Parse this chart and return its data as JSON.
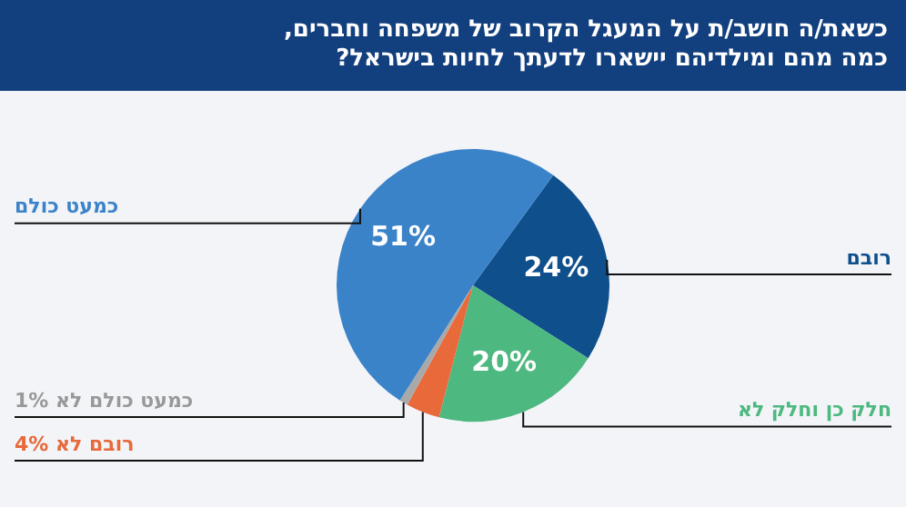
{
  "chart_data": {
    "type": "pie",
    "title": "כשאת/ה חושב/ת על המעגל הקרוב של משפחה וחברים, כמה מהם ומילדיהם יישארו לדעתך לחיות בישראל?",
    "categories": [
      "רובם",
      "חלק כן וחלק לא",
      "רובם לא 4%",
      "כמעט כולם לא 1%",
      "כמעט כולם"
    ],
    "value_labels": [
      "24%",
      "20%",
      null,
      null,
      "51%"
    ],
    "values": [
      24,
      20,
      4,
      1,
      51
    ],
    "colors": [
      "#0e4f8c",
      "#4db87f",
      "#e8693a",
      "#a9a9a9",
      "#3b83c9"
    ],
    "legend": false
  }
}
